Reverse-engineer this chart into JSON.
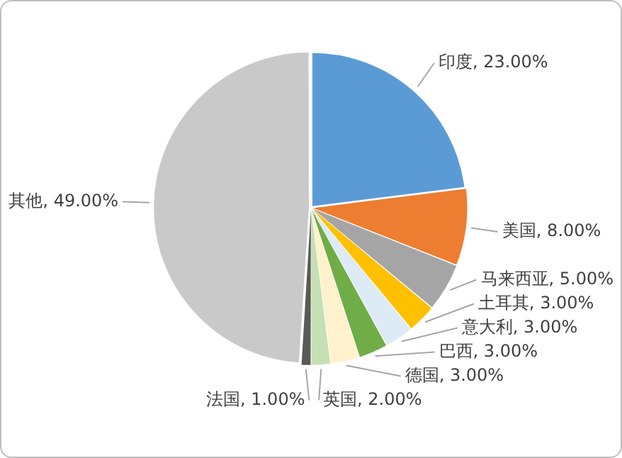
{
  "chart_data": {
    "type": "pie",
    "categories": [
      "印度",
      "美国",
      "马来西亚",
      "土耳其",
      "意大利",
      "巴西",
      "德国",
      "英国",
      "法国",
      "其他"
    ],
    "values": [
      23,
      8,
      5,
      3,
      3,
      3,
      3,
      2,
      1,
      49
    ],
    "value_labels": [
      "23.00%",
      "8.00%",
      "5.00%",
      "3.00%",
      "3.00%",
      "3.00%",
      "3.00%",
      "2.00%",
      "1.00%",
      "49.00%"
    ],
    "colors": [
      "#5b9bd5",
      "#ed7d31",
      "#a5a5a5",
      "#ffc000",
      "#ddebf7",
      "#70ad47",
      "#fff2cc",
      "#c5e0b4",
      "#595959",
      "#c9c9c9"
    ],
    "legend": false
  }
}
